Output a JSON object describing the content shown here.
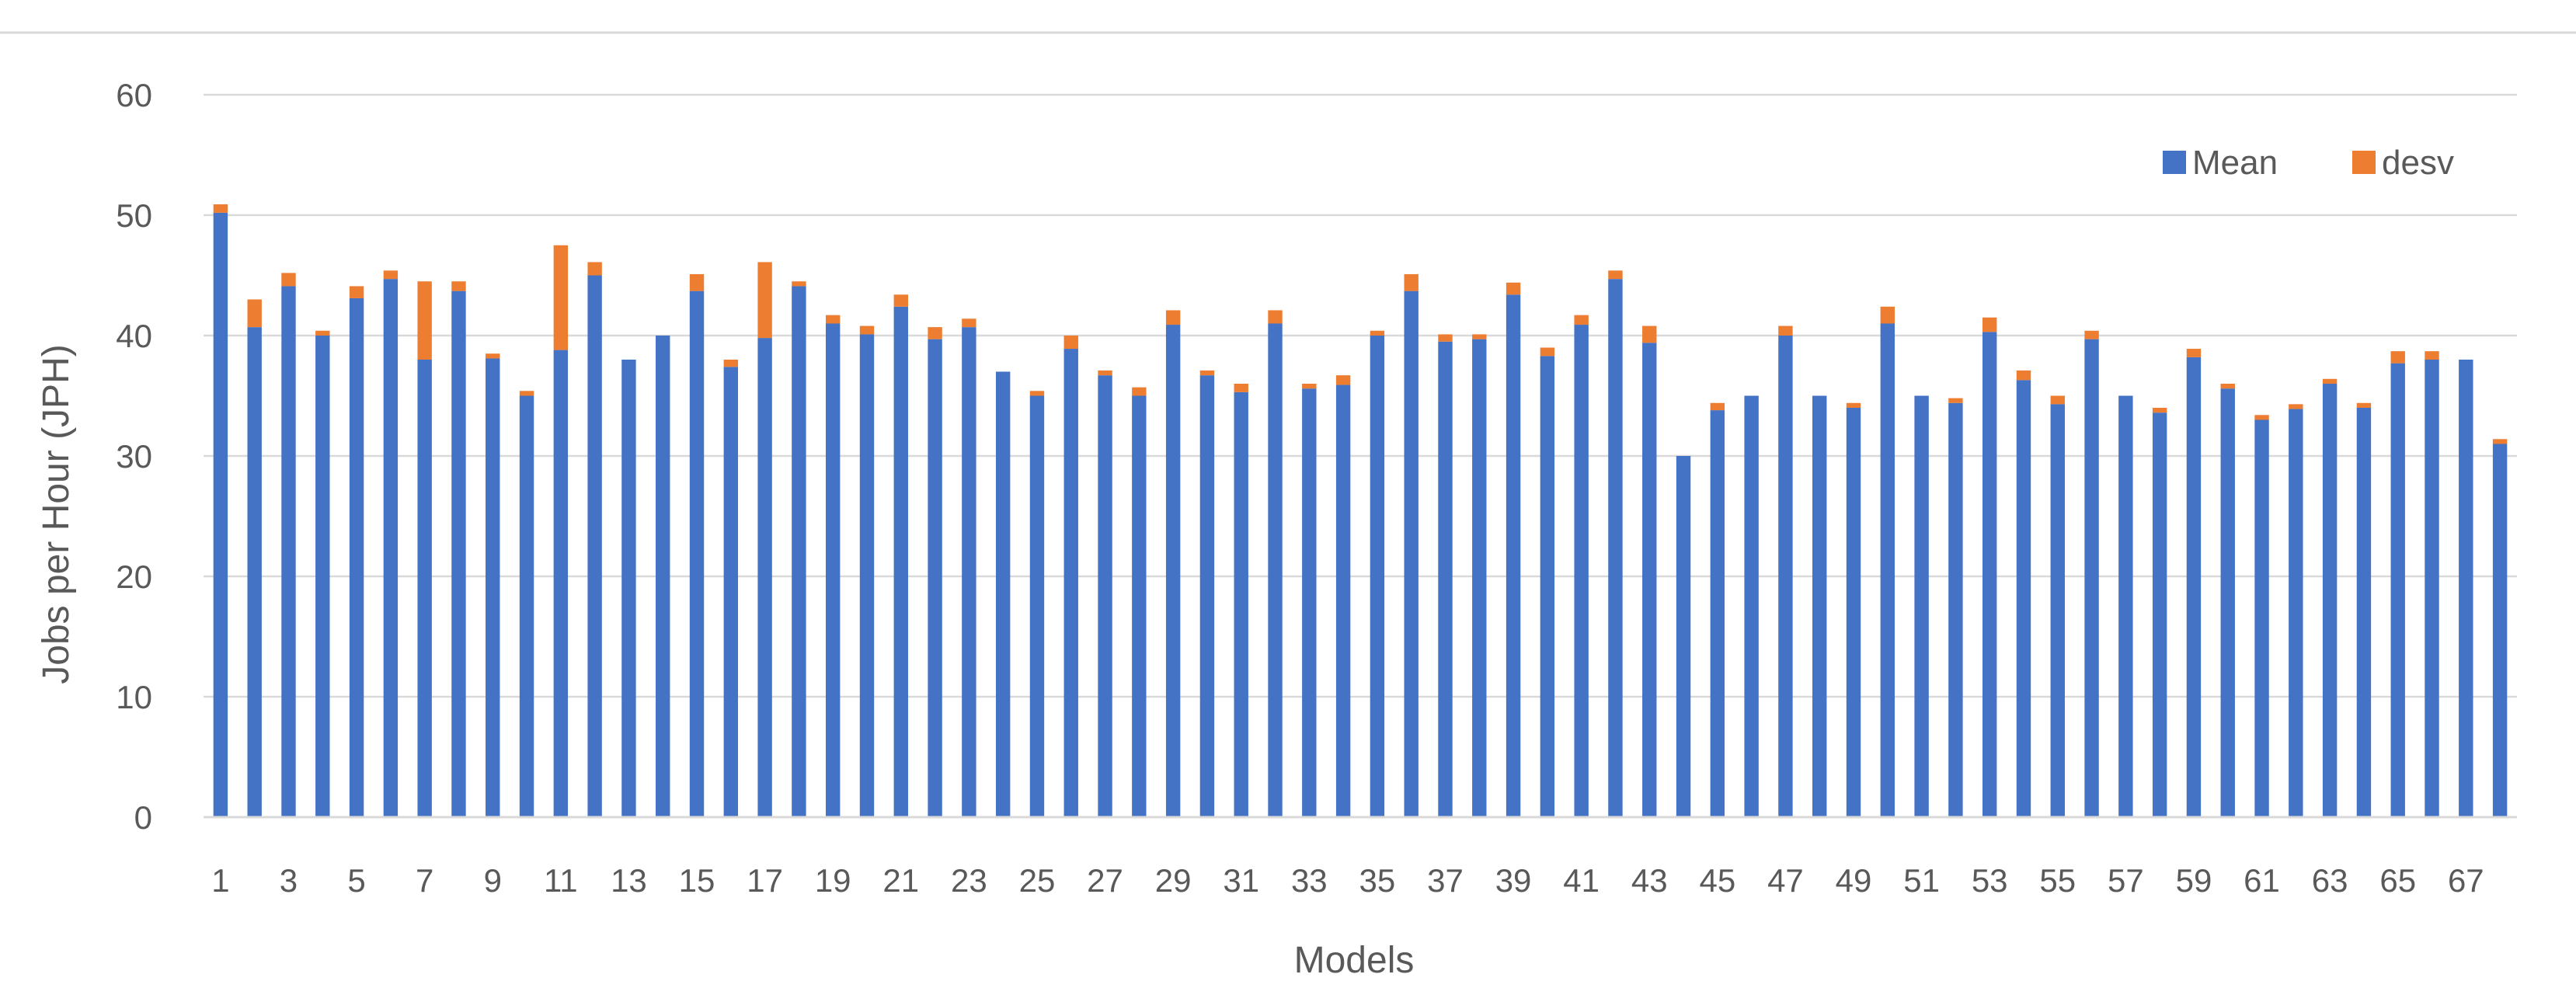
{
  "chart_data": {
    "type": "bar",
    "stacked": true,
    "title": "",
    "xlabel": "Models",
    "ylabel": "Jobs per Hour (JPH)",
    "ylim": [
      0,
      60
    ],
    "yticks": [
      0,
      10,
      20,
      30,
      40,
      50,
      60
    ],
    "grid": true,
    "legend_position": "top-right",
    "categories": [
      1,
      2,
      3,
      4,
      5,
      6,
      7,
      8,
      9,
      10,
      11,
      12,
      13,
      14,
      15,
      16,
      17,
      18,
      19,
      20,
      21,
      22,
      23,
      24,
      25,
      26,
      27,
      28,
      29,
      30,
      31,
      32,
      33,
      34,
      35,
      36,
      37,
      38,
      39,
      40,
      41,
      42,
      43,
      44,
      45,
      46,
      47,
      48,
      49,
      50,
      51,
      52,
      53,
      54,
      55,
      56,
      57,
      58,
      59,
      60,
      61,
      62,
      63,
      64,
      65,
      66,
      67,
      68
    ],
    "xtick_labels": [
      "1",
      "3",
      "5",
      "7",
      "9",
      "11",
      "13",
      "15",
      "17",
      "19",
      "21",
      "23",
      "25",
      "27",
      "29",
      "31",
      "33",
      "35",
      "37",
      "39",
      "41",
      "43",
      "45",
      "47",
      "49",
      "51",
      "53",
      "55",
      "57",
      "59",
      "61",
      "63",
      "65",
      "67"
    ],
    "series": [
      {
        "name": "Mean",
        "color": "#4472c4",
        "values": [
          50.2,
          40.7,
          44.1,
          40.0,
          43.1,
          44.7,
          38.0,
          43.7,
          38.1,
          35.0,
          38.8,
          45.0,
          38.0,
          40.0,
          43.7,
          37.4,
          39.8,
          44.1,
          41.0,
          40.1,
          42.4,
          39.7,
          40.7,
          37.0,
          35.0,
          38.9,
          36.7,
          35.0,
          40.9,
          36.7,
          35.3,
          41.0,
          35.6,
          35.9,
          40.0,
          43.7,
          39.5,
          39.7,
          43.4,
          38.3,
          40.9,
          44.7,
          39.4,
          30.0,
          33.8,
          35.0,
          40.0,
          35.0,
          34.0,
          41.0,
          35.0,
          34.4,
          40.3,
          36.3,
          34.3,
          39.7,
          35.0,
          33.6,
          38.2,
          35.6,
          33.0,
          33.9,
          36.0,
          34.0,
          37.7,
          38.0,
          38.0,
          31.0
        ]
      },
      {
        "name": "desv",
        "color": "#ed7d31",
        "values": [
          0.7,
          2.3,
          1.1,
          0.4,
          1.0,
          0.7,
          6.5,
          0.8,
          0.4,
          0.4,
          8.7,
          1.1,
          0.0,
          0.0,
          1.4,
          0.6,
          6.3,
          0.4,
          0.7,
          0.7,
          1.0,
          1.0,
          0.7,
          0.0,
          0.4,
          1.1,
          0.4,
          0.7,
          1.2,
          0.4,
          0.7,
          1.1,
          0.4,
          0.8,
          0.4,
          1.4,
          0.6,
          0.4,
          1.0,
          0.7,
          0.8,
          0.7,
          1.4,
          0.0,
          0.6,
          0.0,
          0.8,
          0.0,
          0.4,
          1.4,
          0.0,
          0.4,
          1.2,
          0.8,
          0.7,
          0.7,
          0.0,
          0.4,
          0.7,
          0.4,
          0.4,
          0.4,
          0.4,
          0.4,
          1.0,
          0.7,
          0.0,
          0.4
        ]
      }
    ]
  }
}
